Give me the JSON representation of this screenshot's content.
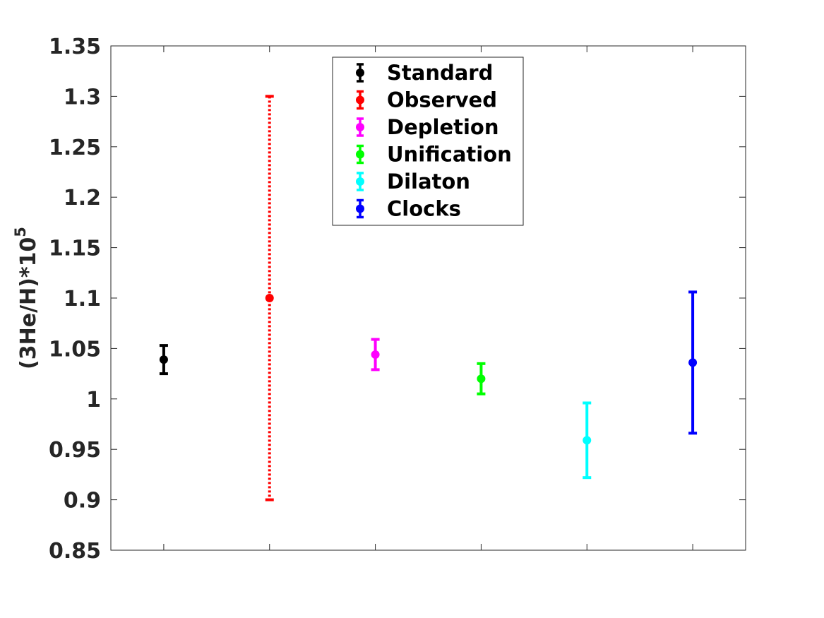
{
  "chart_data": {
    "type": "scatter",
    "title": "",
    "xlabel": "",
    "ylabel_parts": {
      "base": "(3He/H)*10",
      "exponent": "5"
    },
    "ylim": [
      0.85,
      1.35
    ],
    "yticks": [
      0.85,
      0.9,
      0.95,
      1,
      1.05,
      1.1,
      1.15,
      1.2,
      1.25,
      1.3,
      1.35
    ],
    "ytick_labels": [
      "0.85",
      "0.9",
      "0.95",
      "1",
      "1.05",
      "1.1",
      "1.15",
      "1.2",
      "1.25",
      "1.3",
      "1.35"
    ],
    "xlim": [
      0.5,
      6.5
    ],
    "xticks": [
      1,
      2,
      3,
      4,
      5,
      6
    ],
    "grid": false,
    "legend_position": "top-center",
    "series": [
      {
        "name": "Standard",
        "x": 1,
        "y": 1.039,
        "lower": 1.025,
        "upper": 1.053,
        "color": "#000000",
        "line_style": "solid"
      },
      {
        "name": "Observed",
        "x": 2,
        "y": 1.1,
        "lower": 0.9,
        "upper": 1.3,
        "color": "#ff0000",
        "line_style": "dotted"
      },
      {
        "name": "Depletion",
        "x": 3,
        "y": 1.044,
        "lower": 1.029,
        "upper": 1.059,
        "color": "#ff00ff",
        "line_style": "solid"
      },
      {
        "name": "Unification",
        "x": 4,
        "y": 1.02,
        "lower": 1.005,
        "upper": 1.035,
        "color": "#00ff00",
        "line_style": "solid"
      },
      {
        "name": "Dilaton",
        "x": 5,
        "y": 0.959,
        "lower": 0.922,
        "upper": 0.996,
        "color": "#00ffff",
        "line_style": "solid"
      },
      {
        "name": "Clocks",
        "x": 6,
        "y": 1.036,
        "lower": 0.966,
        "upper": 1.106,
        "color": "#0000ff",
        "line_style": "solid"
      }
    ]
  }
}
